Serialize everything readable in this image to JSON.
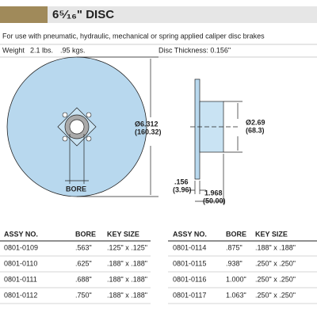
{
  "header": {
    "title": "6⁵⁄₁₆\" DISC"
  },
  "description": "For use with pneumatic, hydraulic, mechanical or spring applied caliper disc brakes",
  "specs": {
    "weight_label": "Weight",
    "weight_lbs": "2.1 lbs.",
    "weight_kgs": ".95 kgs.",
    "thickness": "Disc Thickness: 0.156\""
  },
  "drawing": {
    "diameter": "Ø6.312",
    "diameter_mm": "(160.32)",
    "bore": "BORE",
    "hub_diameter": "Ø2.69",
    "hub_diameter_mm": "(68.3)",
    "plate": ".156",
    "plate_mm": "(3.96)",
    "hub_length": "1.968",
    "hub_length_mm": "(50.00)"
  },
  "table": {
    "headers": [
      "ASSY NO.",
      "BORE",
      "KEY SIZE"
    ],
    "left_rows": [
      [
        "0801-0109",
        ".563\"",
        ".125\" x .125\""
      ],
      [
        "0801-0110",
        ".625\"",
        ".188\" x .188\""
      ],
      [
        "0801-0111",
        ".688\"",
        ".188\" x .188\""
      ],
      [
        "0801-0112",
        ".750\"",
        ".188\" x .188\""
      ]
    ],
    "right_rows": [
      [
        "0801-0114",
        ".875\"",
        ".188\" x .188\""
      ],
      [
        "0801-0115",
        ".938\"",
        ".250\" x .250\""
      ],
      [
        "0801-0116",
        "1.000\"",
        ".250\" x .250\""
      ],
      [
        "0801-0117",
        "1.063\"",
        ".250\" x .250\""
      ]
    ]
  }
}
